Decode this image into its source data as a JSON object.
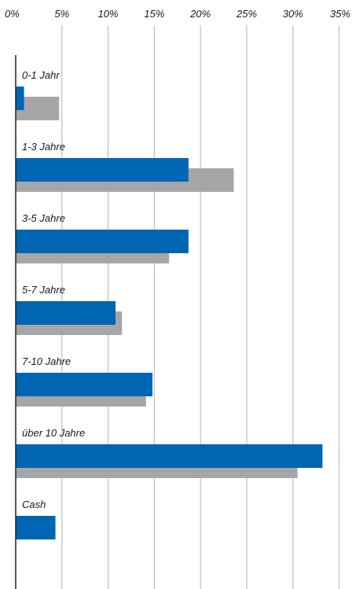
{
  "chart_data": {
    "type": "bar",
    "orientation": "horizontal",
    "title": "",
    "xlabel": "",
    "ylabel": "",
    "xlim": [
      0,
      35
    ],
    "ticks": [
      "0%",
      "5%",
      "10%",
      "15%",
      "20%",
      "25%",
      "30%",
      "35%"
    ],
    "grid": true,
    "categories": [
      "0-1 Jahr",
      "1-3 Jahre",
      "3-5 Jahre",
      "5-7 Jahre",
      "7-10 Jahre",
      "über 10 Jahre",
      "Cash"
    ],
    "series": [
      {
        "values": [
          0.9,
          18.7,
          18.7,
          10.8,
          14.8,
          33.2,
          4.3
        ],
        "color": "#0066b3"
      },
      {
        "values": [
          4.7,
          23.6,
          16.6,
          11.5,
          14.1,
          30.5,
          0
        ],
        "color": "#a6a6a8"
      }
    ]
  }
}
